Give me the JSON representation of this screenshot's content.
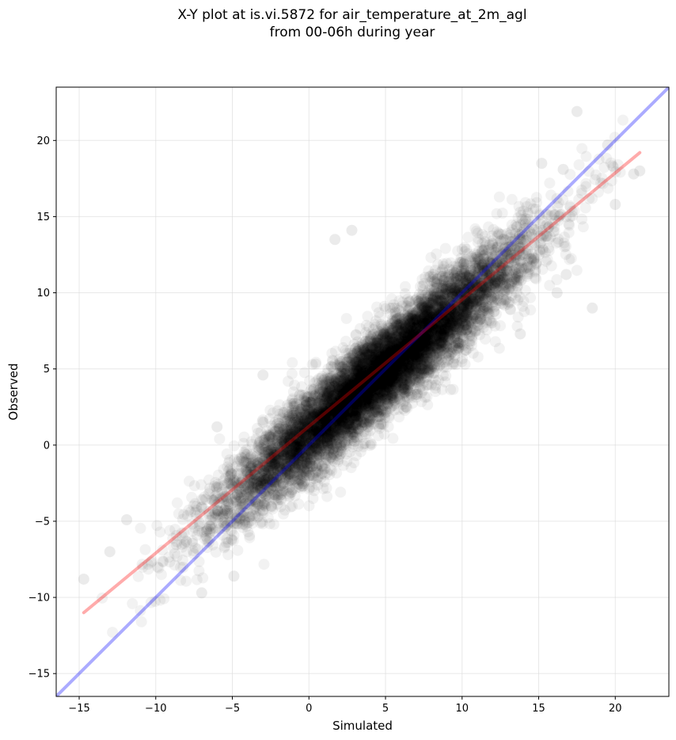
{
  "chart_data": {
    "type": "scatter",
    "title_line1": "X-Y plot at is.vi.5872 for air_temperature_at_2m_agl",
    "title_line2": "from 00-06h during year",
    "xlabel": "Simulated",
    "ylabel": "Observed",
    "xlim": [
      -16.5,
      23.5
    ],
    "ylim": [
      -16.5,
      23.5
    ],
    "xticks": [
      -15,
      -10,
      -5,
      0,
      5,
      10,
      15,
      20
    ],
    "yticks": [
      -15,
      -10,
      -5,
      0,
      5,
      10,
      15,
      20
    ],
    "xtick_labels": [
      "−15",
      "−10",
      "−5",
      "0",
      "5",
      "10",
      "15",
      "20"
    ],
    "ytick_labels": [
      "−15",
      "−10",
      "−5",
      "0",
      "5",
      "10",
      "15",
      "20"
    ],
    "grid": true,
    "point_color": "#000000",
    "point_opacity": 0.05,
    "point_count_approx": 9000,
    "cloud_center": [
      4.5,
      4.6
    ],
    "cloud_slope": 0.85,
    "outliers": [
      [
        -14.7,
        -8.8
      ],
      [
        17.5,
        21.9
      ],
      [
        21.2,
        17.8
      ],
      [
        21.6,
        18.0
      ],
      [
        18.5,
        9.0
      ],
      [
        19.5,
        19.7
      ],
      [
        -13.0,
        -7.0
      ],
      [
        -11.9,
        -4.9
      ],
      [
        -7.0,
        -9.7
      ],
      [
        -4.9,
        -8.6
      ],
      [
        15.2,
        18.5
      ],
      [
        16.6,
        18.1
      ],
      [
        2.8,
        14.1
      ],
      [
        1.7,
        13.5
      ],
      [
        20.0,
        15.8
      ],
      [
        16.8,
        11.2
      ],
      [
        16.2,
        10.0
      ],
      [
        13.8,
        7.3
      ],
      [
        -6.0,
        1.2
      ],
      [
        -3.0,
        4.6
      ]
    ],
    "reference_lines": [
      {
        "label": "1:1 line",
        "color": "#0000ff",
        "opacity": 0.33,
        "x": [
          -16.5,
          23.5
        ],
        "y": [
          -16.5,
          23.5
        ]
      },
      {
        "label": "fit line",
        "color": "#ff0000",
        "opacity": 0.33,
        "x": [
          -14.7,
          21.6
        ],
        "y": [
          -11.0,
          19.2
        ]
      }
    ]
  }
}
